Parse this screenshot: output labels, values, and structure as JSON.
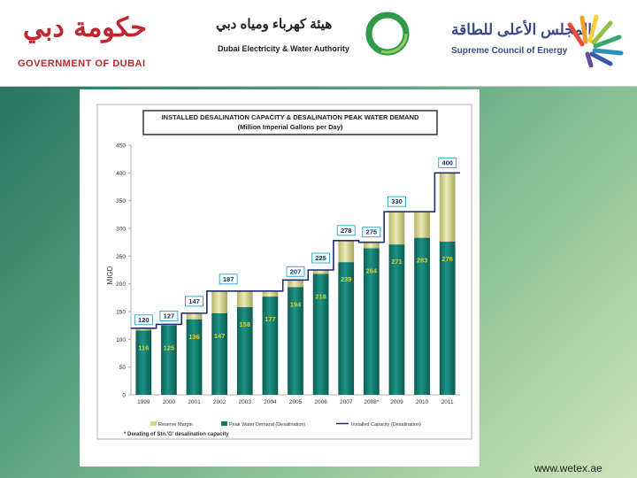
{
  "header": {
    "gov_arabic": "حكومة دبي",
    "gov_english": "GOVERNMENT OF DUBAI",
    "dewa_arabic": "هيئة كهرباء ومياه دبي",
    "dewa_english": "Dubai Electricity & Water Authority",
    "sce_arabic": "المجلس الأعلى للطاقة",
    "sce_english": "Supreme Council of Energy"
  },
  "footer": {
    "url": "www.wetex.ae"
  },
  "colors": {
    "demand": "#147a6e",
    "reserve": "#d8d48e",
    "capacity_line": "#1f2f6b",
    "label_cyan": "#16b4b4"
  },
  "chart_data": {
    "type": "bar",
    "title_line1": "INSTALLED DESALINATION CAPACITY & DESALINATION PEAK WATER DEMAND",
    "title_line2": "(Million Imperial Gallons per Day)",
    "ylabel": "MIGD",
    "ylim": [
      0,
      450
    ],
    "yticks": [
      0,
      50,
      100,
      150,
      200,
      250,
      300,
      350,
      400,
      450
    ],
    "categories": [
      "1999",
      "2000",
      "2001",
      "2002",
      "2003",
      "2004",
      "2005",
      "2006",
      "2007",
      "2008*",
      "2009",
      "2010",
      "2011"
    ],
    "series": [
      {
        "name": "Peak Water Demand (Desalination)",
        "values": [
          116,
          125,
          136,
          147,
          158,
          177,
          194,
          218,
          239,
          264,
          271,
          283,
          276
        ]
      },
      {
        "name": "Installed Capacity (Desalination)",
        "values": [
          120,
          127,
          147,
          187,
          187,
          187,
          207,
          225,
          278,
          275,
          330,
          330,
          400
        ]
      }
    ],
    "capacity_labels": [
      "120",
      "127",
      "147",
      "187",
      "207",
      "225",
      "278",
      "275",
      "330",
      "400"
    ],
    "legend": [
      "Reserve Margin",
      "Peak Water Demand (Desalination)",
      "Installed Capacity (Desalination)"
    ],
    "note": "* Derating of Stn.'G' desalination capacity",
    "grid": false
  }
}
